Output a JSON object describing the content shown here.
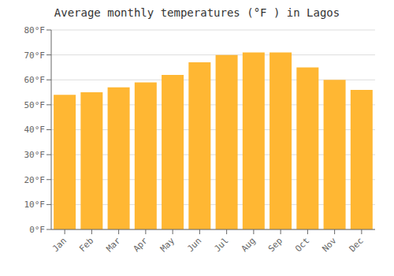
{
  "chart_data": {
    "type": "bar",
    "title": "Average monthly temperatures (°F ) in Lagos",
    "categories": [
      "Jan",
      "Feb",
      "Mar",
      "Apr",
      "May",
      "Jun",
      "Jul",
      "Aug",
      "Sep",
      "Oct",
      "Nov",
      "Dec"
    ],
    "values": [
      54,
      55,
      57,
      59,
      62,
      67,
      70,
      71,
      71,
      65,
      60,
      56
    ],
    "color": "#FFB733",
    "ylim": [
      0,
      80
    ],
    "yticks": [
      {
        "value": 0,
        "label": "0°F"
      },
      {
        "value": 10,
        "label": "10°F"
      },
      {
        "value": 20,
        "label": "20°F"
      },
      {
        "value": 30,
        "label": "30°F"
      },
      {
        "value": 40,
        "label": "40°F"
      },
      {
        "value": 50,
        "label": "50°F"
      },
      {
        "value": 60,
        "label": "60°F"
      },
      {
        "value": 70,
        "label": "70°F"
      },
      {
        "value": 80,
        "label": "80°F"
      }
    ],
    "grid": true
  }
}
